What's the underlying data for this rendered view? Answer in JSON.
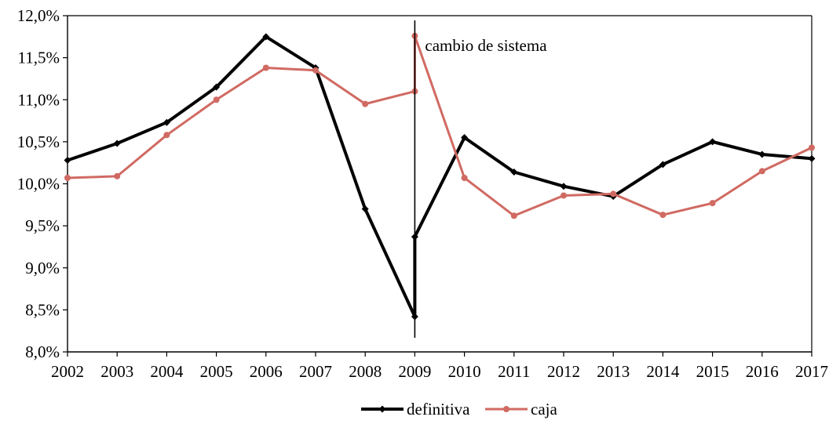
{
  "chart_data": {
    "type": "line",
    "title": "",
    "xlabel": "",
    "ylabel": "",
    "categories": [
      "2002",
      "2003",
      "2004",
      "2005",
      "2006",
      "2007",
      "2008",
      "2009",
      "2010",
      "2011",
      "2012",
      "2013",
      "2014",
      "2015",
      "2016",
      "2017"
    ],
    "ylim": [
      8.0,
      12.0
    ],
    "y_ticks": [
      "8,0%",
      "8,5%",
      "9,0%",
      "9,5%",
      "10,0%",
      "10,5%",
      "11,0%",
      "11,5%",
      "12,0%"
    ],
    "grid": false,
    "legend_position": "bottom-center",
    "annotation": {
      "text": "cambio de sistema",
      "at_category": "2009"
    },
    "series": [
      {
        "name": "definitiva",
        "color": "#000000",
        "marker": "diamond",
        "points": [
          {
            "x": "2002",
            "y": 10.28
          },
          {
            "x": "2003",
            "y": 10.48
          },
          {
            "x": "2004",
            "y": 10.73
          },
          {
            "x": "2005",
            "y": 11.15
          },
          {
            "x": "2006",
            "y": 11.75
          },
          {
            "x": "2007",
            "y": 11.38
          },
          {
            "x": "2008",
            "y": 9.7
          },
          {
            "x": "2009",
            "y": 8.42
          },
          {
            "x": "2009",
            "y": 9.37
          },
          {
            "x": "2010",
            "y": 10.55
          },
          {
            "x": "2011",
            "y": 10.14
          },
          {
            "x": "2012",
            "y": 9.97
          },
          {
            "x": "2013",
            "y": 9.85
          },
          {
            "x": "2014",
            "y": 10.23
          },
          {
            "x": "2015",
            "y": 10.5
          },
          {
            "x": "2016",
            "y": 10.35
          },
          {
            "x": "2017",
            "y": 10.3
          }
        ]
      },
      {
        "name": "caja",
        "color": "#d06a62",
        "marker": "circle",
        "points": [
          {
            "x": "2002",
            "y": 10.07
          },
          {
            "x": "2003",
            "y": 10.09
          },
          {
            "x": "2004",
            "y": 10.58
          },
          {
            "x": "2005",
            "y": 11.0
          },
          {
            "x": "2006",
            "y": 11.38
          },
          {
            "x": "2007",
            "y": 11.35
          },
          {
            "x": "2008",
            "y": 10.95
          },
          {
            "x": "2009",
            "y": 11.1
          },
          {
            "x": "2009",
            "y": 11.76
          },
          {
            "x": "2010",
            "y": 10.07
          },
          {
            "x": "2011",
            "y": 9.62
          },
          {
            "x": "2012",
            "y": 9.86
          },
          {
            "x": "2013",
            "y": 9.88
          },
          {
            "x": "2014",
            "y": 9.63
          },
          {
            "x": "2015",
            "y": 9.77
          },
          {
            "x": "2016",
            "y": 10.15
          },
          {
            "x": "2017",
            "y": 10.43
          }
        ]
      }
    ]
  }
}
